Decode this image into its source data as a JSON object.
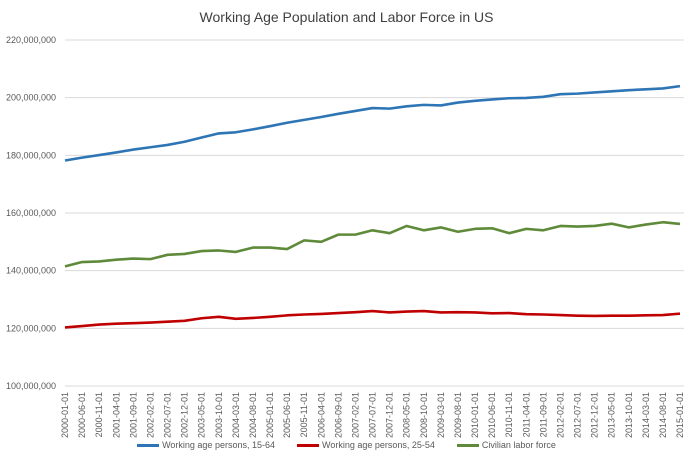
{
  "chart_data": {
    "type": "line",
    "title": "Working Age Population and Labor Force in US",
    "xlabel": "",
    "ylabel": "",
    "ylim": [
      100000000,
      220000000
    ],
    "yticks": [
      "100,000,000",
      "120,000,000",
      "140,000,000",
      "160,000,000",
      "180,000,000",
      "200,000,000",
      "220,000,000"
    ],
    "grid": true,
    "legend_position": "bottom",
    "x": [
      "2000-01-01",
      "2000-06-01",
      "2000-11-01",
      "2001-04-01",
      "2001-09-01",
      "2002-02-01",
      "2002-07-01",
      "2002-12-01",
      "2003-05-01",
      "2003-10-01",
      "2004-03-01",
      "2004-08-01",
      "2005-01-01",
      "2005-06-01",
      "2005-11-01",
      "2006-04-01",
      "2006-09-01",
      "2007-02-01",
      "2007-07-01",
      "2007-12-01",
      "2008-05-01",
      "2008-10-01",
      "2009-03-01",
      "2009-08-01",
      "2010-01-01",
      "2010-06-01",
      "2010-11-01",
      "2011-04-01",
      "2011-09-01",
      "2012-02-01",
      "2012-07-01",
      "2012-12-01",
      "2013-05-01",
      "2013-10-01",
      "2014-03-01",
      "2014-08-01",
      "2015-01-01"
    ],
    "series": [
      {
        "name": "Working age persons, 15-64",
        "color": "#2e75b6",
        "values": [
          178200000,
          179200000,
          180100000,
          181000000,
          182000000,
          182800000,
          183600000,
          184700000,
          186200000,
          187600000,
          188000000,
          189000000,
          190100000,
          191300000,
          192300000,
          193300000,
          194400000,
          195400000,
          196400000,
          196200000,
          197000000,
          197500000,
          197300000,
          198300000,
          198900000,
          199400000,
          199800000,
          199900000,
          200300000,
          201200000,
          201400000,
          201800000,
          202200000,
          202600000,
          202900000,
          203200000,
          204000000
        ]
      },
      {
        "name": "Working age persons, 25-54",
        "color": "#c00000",
        "values": [
          120300000,
          120800000,
          121300000,
          121600000,
          121800000,
          122000000,
          122300000,
          122600000,
          123500000,
          124000000,
          123300000,
          123600000,
          124000000,
          124500000,
          124800000,
          125000000,
          125300000,
          125600000,
          126000000,
          125500000,
          125800000,
          126000000,
          125500000,
          125600000,
          125500000,
          125200000,
          125300000,
          124900000,
          124800000,
          124600000,
          124400000,
          124300000,
          124400000,
          124400000,
          124500000,
          124600000,
          125100000
        ]
      },
      {
        "name": "Civilian labor force",
        "color": "#5f8a3a",
        "values": [
          141500000,
          143000000,
          143200000,
          143800000,
          144200000,
          144000000,
          145500000,
          145800000,
          146800000,
          147000000,
          146500000,
          148000000,
          148000000,
          147500000,
          150500000,
          150000000,
          152500000,
          152500000,
          154000000,
          153000000,
          155500000,
          154000000,
          155000000,
          153500000,
          154500000,
          154700000,
          153000000,
          154500000,
          154000000,
          155500000,
          155300000,
          155500000,
          156300000,
          155000000,
          156000000,
          156800000,
          156200000
        ]
      }
    ]
  }
}
